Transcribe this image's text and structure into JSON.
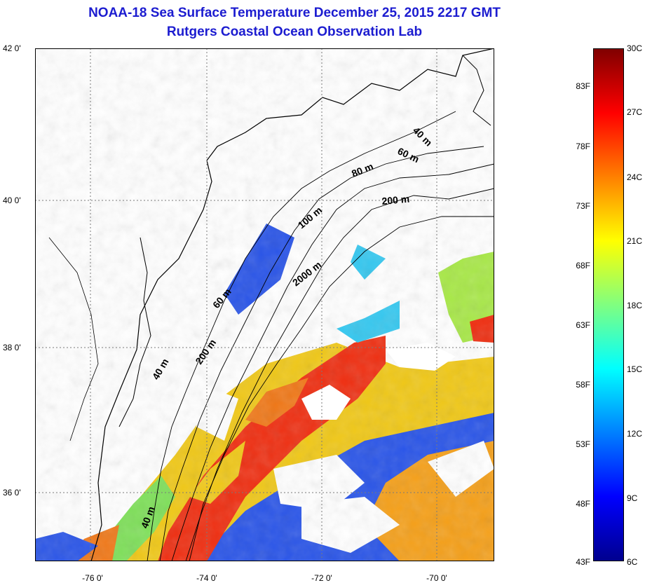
{
  "title_line1": "NOAA-18 Sea Surface Temperature December 25, 2015 2217 GMT",
  "title_line2": "Rutgers Coastal Ocean Observation Lab",
  "colors": {
    "title": "#1c1cd0",
    "land": "#ffffff",
    "cloud": "#ffffff",
    "coastline": "#000000",
    "graticule": "#7a7a7a"
  },
  "map": {
    "lat_ticks": [
      "42 0'",
      "40 0'",
      "38 0'",
      "36 0'"
    ],
    "lon_ticks": [
      "-76 0'",
      "-74 0'",
      "-72 0'",
      "-70 0'"
    ],
    "lat_range": [
      35,
      42
    ],
    "lon_range": [
      -77,
      -69
    ],
    "isobath_labels": [
      "40 m",
      "60 m",
      "80 m",
      "200 m",
      "100 m",
      "2000 m",
      "60 m",
      "200 m",
      "40 m",
      "40 m"
    ]
  },
  "colorbar": {
    "celsius_labels": [
      "30C",
      "27C",
      "24C",
      "21C",
      "18C",
      "15C",
      "12C",
      "9C",
      "6C"
    ],
    "fahrenheit_labels": [
      "83F",
      "78F",
      "73F",
      "68F",
      "63F",
      "58F",
      "53F",
      "48F",
      "43F"
    ],
    "range_c": [
      6,
      30
    ],
    "gradient_colors": [
      "#00008f",
      "#0000ff",
      "#0080ff",
      "#00ffff",
      "#80ff80",
      "#ffff00",
      "#ff8000",
      "#ff0000",
      "#800000"
    ]
  }
}
